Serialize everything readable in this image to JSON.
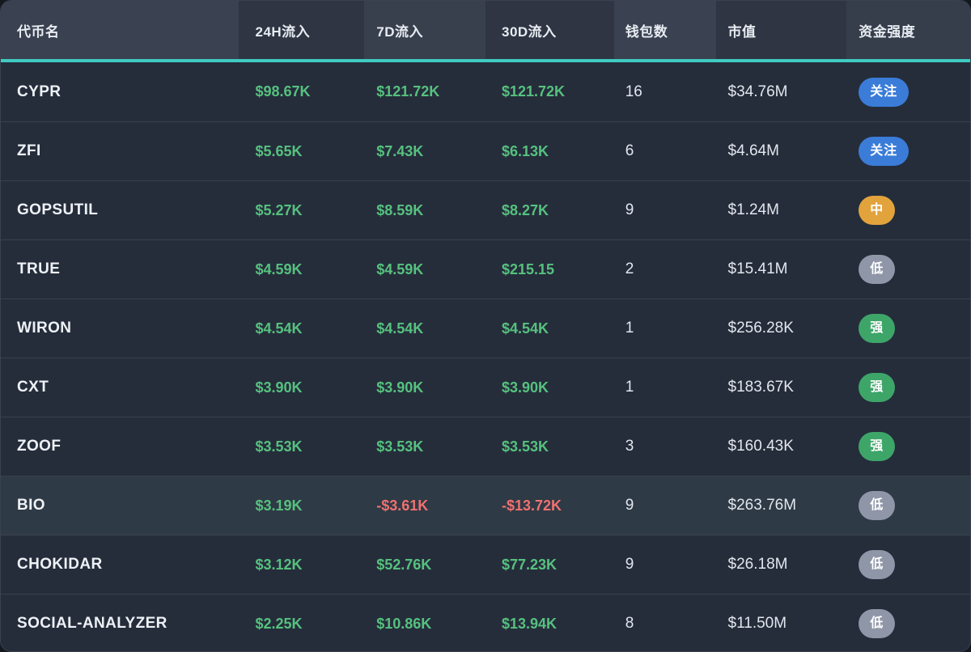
{
  "table": {
    "columns": [
      {
        "label": "代币名"
      },
      {
        "label": "24H流入"
      },
      {
        "label": "7D流入"
      },
      {
        "label": "30D流入"
      },
      {
        "label": "钱包数"
      },
      {
        "label": "市值"
      },
      {
        "label": "资金强度"
      }
    ],
    "rows": [
      {
        "token": "CYPR",
        "inflow_24h": "$98.67K",
        "inflow_7d": "$121.72K",
        "inflow_30d": "$121.72K",
        "wallets": "16",
        "mcap": "$34.76M",
        "badge": {
          "label": "关注",
          "type": "focus",
          "color": "#3A7CD8"
        },
        "highlighted": false
      },
      {
        "token": "ZFI",
        "inflow_24h": "$5.65K",
        "inflow_7d": "$7.43K",
        "inflow_30d": "$6.13K",
        "wallets": "6",
        "mcap": "$4.64M",
        "badge": {
          "label": "关注",
          "type": "focus",
          "color": "#3A7CD8"
        },
        "highlighted": false
      },
      {
        "token": "GOPSUTIL",
        "inflow_24h": "$5.27K",
        "inflow_7d": "$8.59K",
        "inflow_30d": "$8.27K",
        "wallets": "9",
        "mcap": "$1.24M",
        "badge": {
          "label": "中",
          "type": "medium",
          "color": "#E2A33C"
        },
        "highlighted": false
      },
      {
        "token": "TRUE",
        "inflow_24h": "$4.59K",
        "inflow_7d": "$4.59K",
        "inflow_30d": "$215.15",
        "wallets": "2",
        "mcap": "$15.41M",
        "badge": {
          "label": "低",
          "type": "low",
          "color": "#8F96A8"
        },
        "highlighted": false
      },
      {
        "token": "WIRON",
        "inflow_24h": "$4.54K",
        "inflow_7d": "$4.54K",
        "inflow_30d": "$4.54K",
        "wallets": "1",
        "mcap": "$256.28K",
        "badge": {
          "label": "强",
          "type": "strong",
          "color": "#3EA569"
        },
        "highlighted": false
      },
      {
        "token": "CXT",
        "inflow_24h": "$3.90K",
        "inflow_7d": "$3.90K",
        "inflow_30d": "$3.90K",
        "wallets": "1",
        "mcap": "$183.67K",
        "badge": {
          "label": "强",
          "type": "strong",
          "color": "#3EA569"
        },
        "highlighted": false
      },
      {
        "token": "ZOOF",
        "inflow_24h": "$3.53K",
        "inflow_7d": "$3.53K",
        "inflow_30d": "$3.53K",
        "wallets": "3",
        "mcap": "$160.43K",
        "badge": {
          "label": "强",
          "type": "strong",
          "color": "#3EA569"
        },
        "highlighted": false
      },
      {
        "token": "BIO",
        "inflow_24h": "$3.19K",
        "inflow_7d": "-$3.61K",
        "inflow_30d": "-$13.72K",
        "wallets": "9",
        "mcap": "$263.76M",
        "badge": {
          "label": "低",
          "type": "low",
          "color": "#8F96A8"
        },
        "highlighted": true
      },
      {
        "token": "CHOKIDAR",
        "inflow_24h": "$3.12K",
        "inflow_7d": "$52.76K",
        "inflow_30d": "$77.23K",
        "wallets": "9",
        "mcap": "$26.18M",
        "badge": {
          "label": "低",
          "type": "low",
          "color": "#8F96A8"
        },
        "highlighted": false
      },
      {
        "token": "SOCIAL-ANALYZER",
        "inflow_24h": "$2.25K",
        "inflow_7d": "$10.86K",
        "inflow_30d": "$13.94K",
        "wallets": "8",
        "mcap": "$11.50M",
        "badge": {
          "label": "低",
          "type": "low",
          "color": "#8F96A8"
        },
        "highlighted": false
      }
    ]
  },
  "colors": {
    "accent_teal": "#40CAC2",
    "positive_green": "#56C17E",
    "negative_red": "#EF7170",
    "badge_focus_blue": "#3A7CD8",
    "badge_medium_yellow": "#E2A33C",
    "badge_low_gray": "#8F96A8",
    "badge_strong_green": "#3EA569",
    "row_background": "#252D3B",
    "row_highlight": "#2E3A45"
  }
}
